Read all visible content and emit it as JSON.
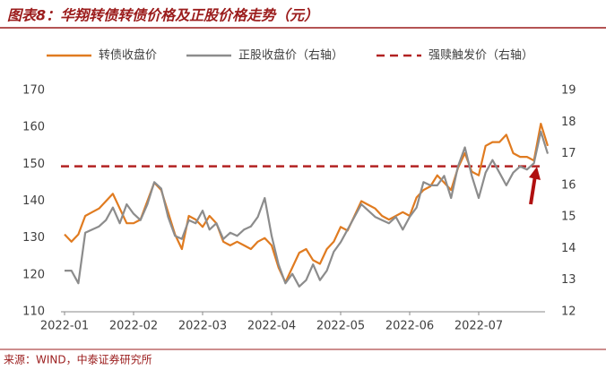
{
  "chart_data": {
    "type": "line",
    "title": "图表8：华翔转债转债价格及正股价格走势（元）",
    "source": "来源：WIND，中泰证券研究所",
    "categories": [
      "2022-01",
      null,
      null,
      null,
      null,
      null,
      null,
      null,
      null,
      null,
      "2022-02",
      null,
      null,
      null,
      null,
      null,
      null,
      null,
      null,
      null,
      "2022-03",
      null,
      null,
      null,
      null,
      null,
      null,
      null,
      null,
      null,
      "2022-04",
      null,
      null,
      null,
      null,
      null,
      null,
      null,
      null,
      null,
      "2022-05",
      null,
      null,
      null,
      null,
      null,
      null,
      null,
      null,
      null,
      "2022-06",
      null,
      null,
      null,
      null,
      null,
      null,
      null,
      null,
      null,
      "2022-07",
      null,
      null,
      null,
      null,
      null,
      null,
      null,
      null,
      null,
      null
    ],
    "series": [
      {
        "name": "转债收盘价",
        "color": "#e07b20",
        "axis": "y",
        "values": [
          131,
          129,
          131,
          136,
          137,
          138,
          140,
          142,
          138,
          134,
          134,
          135,
          140,
          145,
          143,
          137,
          131,
          127,
          136,
          135,
          133,
          136,
          134,
          129,
          128,
          129,
          128,
          127,
          129,
          130,
          128,
          122,
          118,
          122,
          126,
          127,
          124,
          123,
          127,
          129,
          133,
          132,
          136,
          140,
          139,
          138,
          136,
          135,
          136,
          137,
          136,
          141,
          143,
          144,
          147,
          145,
          143,
          149,
          153,
          148,
          147,
          155,
          156,
          156,
          158,
          153,
          152,
          152,
          151,
          161,
          155
        ]
      },
      {
        "name": "正股收盘价（右轴）",
        "color": "#8c8c8c",
        "axis": "y2",
        "values": [
          13.3,
          13.3,
          12.9,
          14.5,
          14.6,
          14.7,
          14.9,
          15.3,
          14.8,
          15.4,
          15.1,
          14.9,
          15.4,
          16.1,
          15.9,
          15.0,
          14.4,
          14.3,
          14.9,
          14.8,
          15.2,
          14.6,
          14.8,
          14.3,
          14.5,
          14.4,
          14.6,
          14.7,
          15.0,
          15.6,
          14.4,
          13.5,
          12.9,
          13.2,
          12.8,
          13.0,
          13.5,
          13.0,
          13.3,
          13.9,
          14.2,
          14.6,
          15.0,
          15.4,
          15.2,
          15.0,
          14.9,
          14.8,
          15.0,
          14.6,
          15.0,
          15.3,
          16.1,
          16.0,
          16.0,
          16.3,
          15.6,
          16.6,
          17.2,
          16.3,
          15.6,
          16.4,
          16.8,
          16.4,
          16.0,
          16.4,
          16.6,
          16.5,
          16.7,
          17.7,
          17.0
        ]
      }
    ],
    "reference_lines": [
      {
        "name": "强赎触发价（右轴）",
        "value": 16.6,
        "axis": "y2",
        "color": "#b22222"
      }
    ],
    "ylim": [
      110,
      170
    ],
    "yticks": [
      110,
      120,
      130,
      140,
      150,
      160,
      170
    ],
    "y2lim": [
      12,
      19
    ],
    "y2ticks": [
      12,
      13,
      14,
      15,
      16,
      17,
      18,
      19
    ]
  }
}
